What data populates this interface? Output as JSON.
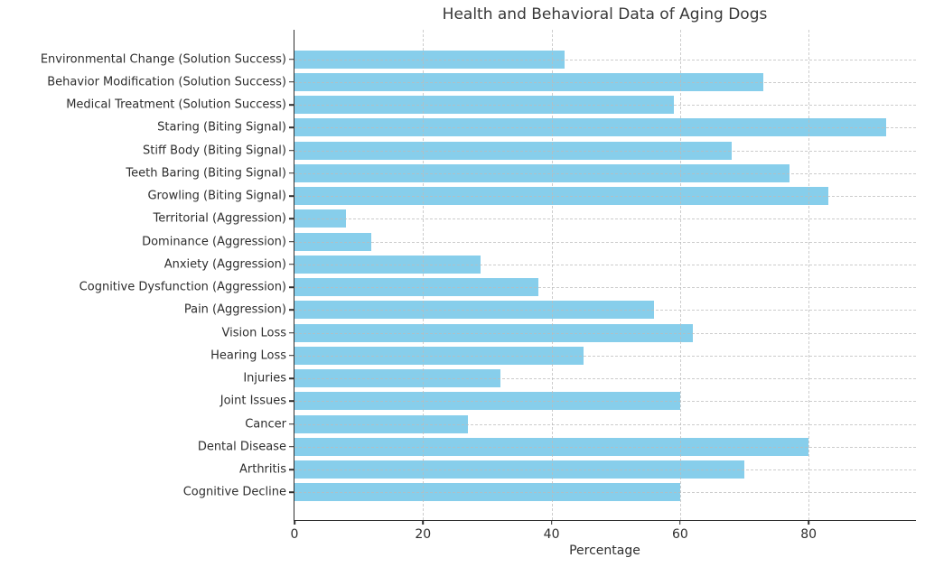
{
  "title": "Health and Behavioral Data of Aging Dogs",
  "chart_data": {
    "type": "bar",
    "orientation": "horizontal",
    "title": "Health and Behavioral Data of Aging Dogs",
    "xlabel": "Percentage",
    "ylabel": "",
    "xlim": [
      0,
      96.7
    ],
    "xticks": [
      0,
      20,
      40,
      60,
      80
    ],
    "grid": true,
    "grid_style": "dashed",
    "legend": "none",
    "bar_color": "#87CEEB",
    "text_color": "#2e2e2e",
    "grid_color": "#bbbbbb",
    "categories": [
      "Environmental Change (Solution Success)",
      "Behavior Modification (Solution Success)",
      "Medical Treatment (Solution Success)",
      "Staring (Biting Signal)",
      "Stiff Body (Biting Signal)",
      "Teeth Baring (Biting Signal)",
      "Growling (Biting Signal)",
      "Territorial (Aggression)",
      "Dominance (Aggression)",
      "Anxiety (Aggression)",
      "Cognitive Dysfunction (Aggression)",
      "Pain (Aggression)",
      "Vision Loss",
      "Hearing Loss",
      "Injuries",
      "Joint Issues",
      "Cancer",
      "Dental Disease",
      "Arthritis",
      "Cognitive Decline"
    ],
    "values": [
      42,
      73,
      59,
      92,
      68,
      77,
      83,
      8,
      12,
      29,
      38,
      56,
      62,
      45,
      32,
      60,
      27,
      80,
      70,
      60
    ]
  }
}
